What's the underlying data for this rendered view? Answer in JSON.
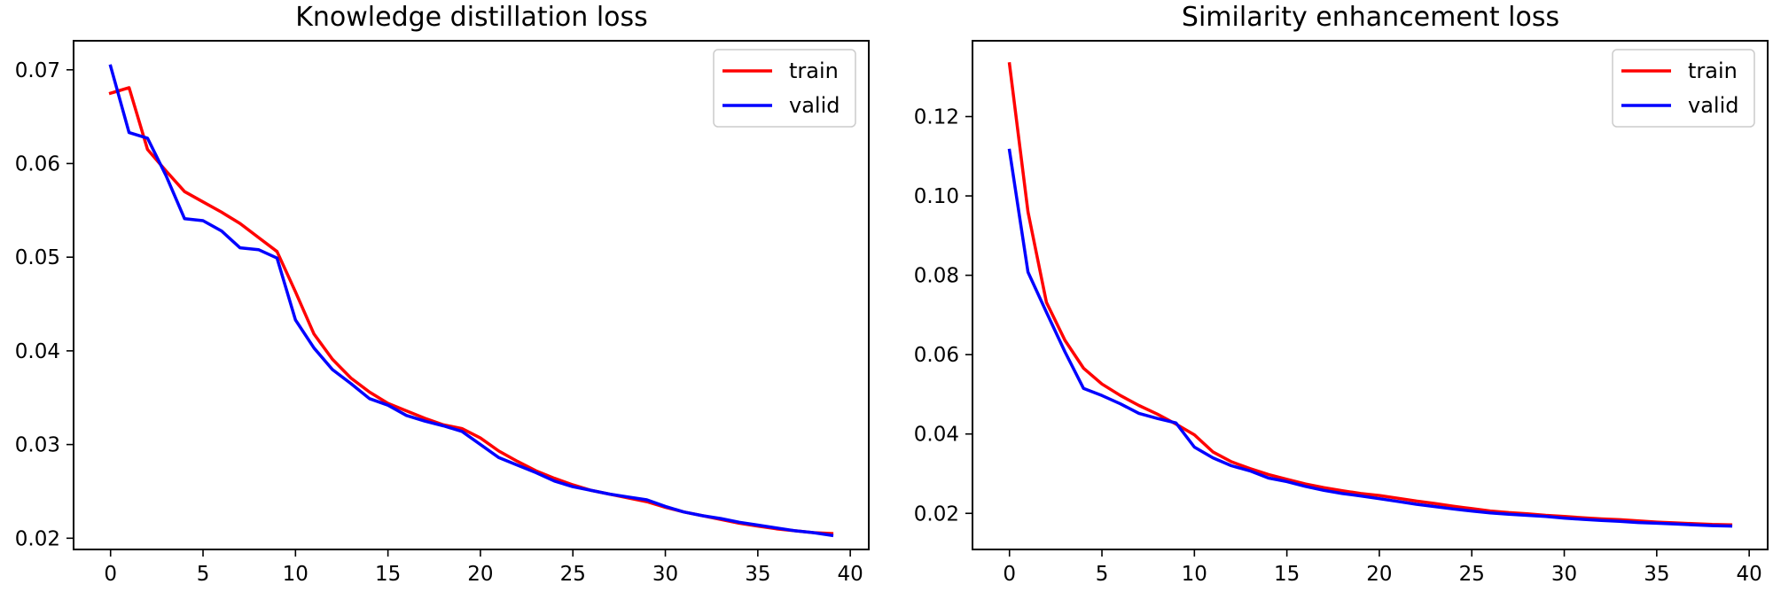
{
  "chart_data": [
    {
      "type": "line",
      "title": "Knowledge distillation loss",
      "xlabel": "",
      "ylabel": "",
      "xlim": [
        -2,
        41
      ],
      "ylim": [
        0.0188,
        0.0731
      ],
      "xticks": [
        0,
        5,
        10,
        15,
        20,
        25,
        30,
        35,
        40
      ],
      "xtick_labels": [
        "0",
        "5",
        "10",
        "15",
        "20",
        "25",
        "30",
        "35",
        "40"
      ],
      "yticks": [
        0.02,
        0.03,
        0.04,
        0.05,
        0.06,
        0.07
      ],
      "ytick_labels": [
        "0.02",
        "0.03",
        "0.04",
        "0.05",
        "0.06",
        "0.07"
      ],
      "legend_position": "top-right",
      "x": [
        0,
        1,
        2,
        3,
        4,
        5,
        6,
        7,
        8,
        9,
        10,
        11,
        12,
        13,
        14,
        15,
        16,
        17,
        18,
        19,
        20,
        21,
        22,
        23,
        24,
        25,
        26,
        27,
        28,
        29,
        30,
        31,
        32,
        33,
        34,
        35,
        36,
        37,
        38,
        39
      ],
      "series": [
        {
          "name": "train",
          "color": "#ff0000",
          "values": [
            0.0675,
            0.0681,
            0.0615,
            0.0592,
            0.057,
            0.0559,
            0.0548,
            0.0536,
            0.0521,
            0.0506,
            0.0463,
            0.0418,
            0.0391,
            0.0371,
            0.0356,
            0.0344,
            0.0336,
            0.0328,
            0.0321,
            0.0317,
            0.0307,
            0.0293,
            0.0282,
            0.0272,
            0.0264,
            0.0257,
            0.0251,
            0.0247,
            0.0243,
            0.0239,
            0.0233,
            0.0228,
            0.0224,
            0.022,
            0.0216,
            0.0213,
            0.021,
            0.0208,
            0.0206,
            0.0205
          ]
        },
        {
          "name": "valid",
          "color": "#0000ff",
          "values": [
            0.0704,
            0.0633,
            0.0627,
            0.0587,
            0.0541,
            0.0539,
            0.0528,
            0.051,
            0.0508,
            0.0499,
            0.0433,
            0.0403,
            0.038,
            0.0365,
            0.0349,
            0.0342,
            0.0331,
            0.0325,
            0.032,
            0.0314,
            0.03,
            0.0286,
            0.0278,
            0.027,
            0.0261,
            0.0255,
            0.0251,
            0.0247,
            0.0244,
            0.0241,
            0.0234,
            0.0228,
            0.0224,
            0.0221,
            0.0217,
            0.0214,
            0.0211,
            0.0208,
            0.0206,
            0.0203
          ]
        }
      ]
    },
    {
      "type": "line",
      "title": "Similarity enhancement loss",
      "xlabel": "",
      "ylabel": "",
      "xlim": [
        -2,
        41
      ],
      "ylim": [
        0.0109,
        0.1391
      ],
      "xticks": [
        0,
        5,
        10,
        15,
        20,
        25,
        30,
        35,
        40
      ],
      "xtick_labels": [
        "0",
        "5",
        "10",
        "15",
        "20",
        "25",
        "30",
        "35",
        "40"
      ],
      "yticks": [
        0.02,
        0.04,
        0.06,
        0.08,
        0.1,
        0.12
      ],
      "ytick_labels": [
        "0.02",
        "0.04",
        "0.06",
        "0.08",
        "0.10",
        "0.12"
      ],
      "legend_position": "top-right",
      "x": [
        0,
        1,
        2,
        3,
        4,
        5,
        6,
        7,
        8,
        9,
        10,
        11,
        12,
        13,
        14,
        15,
        16,
        17,
        18,
        19,
        20,
        21,
        22,
        23,
        24,
        25,
        26,
        27,
        28,
        29,
        30,
        31,
        32,
        33,
        34,
        35,
        36,
        37,
        38,
        39
      ],
      "series": [
        {
          "name": "train",
          "color": "#ff0000",
          "values": [
            0.1333,
            0.096,
            0.0732,
            0.0636,
            0.0566,
            0.0526,
            0.0497,
            0.0472,
            0.045,
            0.0425,
            0.0398,
            0.0355,
            0.033,
            0.0313,
            0.0298,
            0.0286,
            0.0274,
            0.0265,
            0.0257,
            0.025,
            0.0245,
            0.0238,
            0.0231,
            0.0225,
            0.0218,
            0.0212,
            0.0206,
            0.0202,
            0.0199,
            0.0195,
            0.0192,
            0.0189,
            0.0186,
            0.0184,
            0.0181,
            0.0178,
            0.0176,
            0.0174,
            0.0172,
            0.0171
          ]
        },
        {
          "name": "valid",
          "color": "#0000ff",
          "values": [
            0.1115,
            0.0808,
            0.0707,
            0.0607,
            0.0515,
            0.0497,
            0.0476,
            0.0452,
            0.0439,
            0.0428,
            0.0367,
            0.034,
            0.032,
            0.0307,
            0.0289,
            0.028,
            0.0268,
            0.0258,
            0.025,
            0.0244,
            0.0237,
            0.023,
            0.0223,
            0.0217,
            0.0211,
            0.0206,
            0.0201,
            0.0198,
            0.0195,
            0.0192,
            0.0188,
            0.0185,
            0.0182,
            0.018,
            0.0177,
            0.0175,
            0.0173,
            0.0171,
            0.0169,
            0.0168
          ]
        }
      ]
    }
  ]
}
